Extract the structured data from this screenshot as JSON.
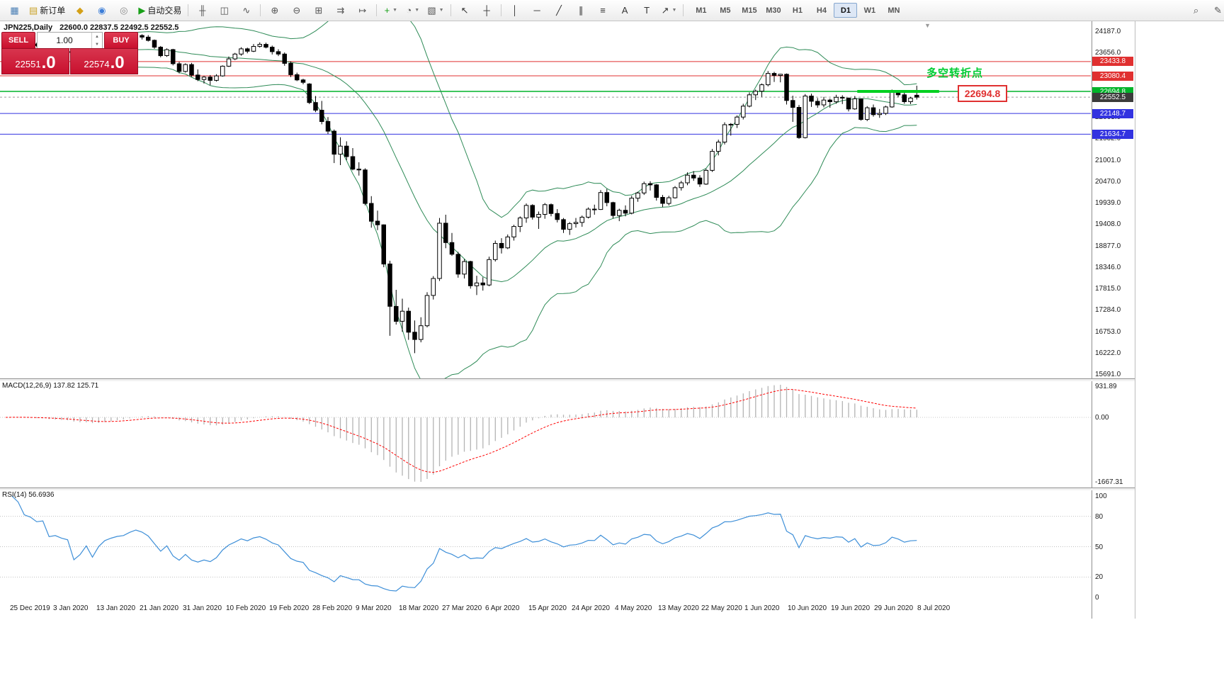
{
  "toolbar": {
    "buttons_left": [
      {
        "name": "chart-window-icon",
        "glyph": "▦",
        "color": "#4a7fb5"
      },
      {
        "name": "new-order-button",
        "glyph": "▤",
        "color": "#c9a227",
        "label": "新订单"
      },
      {
        "name": "indicators-icon",
        "glyph": "◆",
        "color": "#d4a017"
      },
      {
        "name": "market-watch-icon",
        "glyph": "◉",
        "color": "#3b7dd8"
      },
      {
        "name": "navigator-icon",
        "glyph": "◎",
        "color": "#888888"
      },
      {
        "name": "autotrading-button",
        "glyph": "▶",
        "color": "#18a018",
        "label": "自动交易"
      },
      {
        "sep": true
      },
      {
        "name": "bar-chart-icon",
        "glyph": "╫",
        "color": "#555555"
      },
      {
        "name": "candle-chart-icon",
        "glyph": "◫",
        "color": "#555555"
      },
      {
        "name": "line-chart-icon",
        "glyph": "∿",
        "color": "#555555"
      },
      {
        "sep": true
      },
      {
        "name": "zoom-in-button",
        "glyph": "⊕",
        "color": "#555555"
      },
      {
        "name": "zoom-out-button",
        "glyph": "⊖",
        "color": "#555555"
      },
      {
        "name": "tile-windows-icon",
        "glyph": "⊞",
        "color": "#555555"
      },
      {
        "name": "auto-scroll-icon",
        "glyph": "⇉",
        "color": "#555555"
      },
      {
        "name": "chart-shift-icon",
        "glyph": "↦",
        "color": "#555555"
      },
      {
        "sep": true
      },
      {
        "name": "new-chart-button",
        "glyph": "+",
        "color": "#18a018",
        "caret": true
      },
      {
        "name": "period-button",
        "glyph": "◔",
        "color": "#555555",
        "caret": true
      },
      {
        "name": "template-button",
        "glyph": "▧",
        "color": "#555555",
        "caret": true
      },
      {
        "sep": true
      },
      {
        "name": "cursor-icon",
        "glyph": "↖",
        "color": "#333333"
      },
      {
        "name": "crosshair-icon",
        "glyph": "┼",
        "color": "#333333"
      },
      {
        "sep": true
      },
      {
        "name": "vertical-line-icon",
        "glyph": "│",
        "color": "#333333"
      },
      {
        "name": "horizontal-line-icon",
        "glyph": "─",
        "color": "#333333"
      },
      {
        "name": "trendline-icon",
        "glyph": "╱",
        "color": "#333333"
      },
      {
        "name": "channel-icon",
        "glyph": "∥",
        "color": "#333333"
      },
      {
        "name": "fibonacci-icon",
        "glyph": "≡",
        "color": "#333333"
      },
      {
        "name": "text-icon",
        "glyph": "A",
        "color": "#333333"
      },
      {
        "name": "label-icon",
        "glyph": "T",
        "color": "#333333"
      },
      {
        "name": "arrow-tool-icon",
        "glyph": "↗",
        "color": "#333333",
        "caret": true
      },
      {
        "sep": true
      }
    ],
    "timeframes": [
      "M1",
      "M5",
      "M15",
      "M30",
      "H1",
      "H4",
      "D1",
      "W1",
      "MN"
    ],
    "active_timeframe": "D1",
    "buttons_right": [
      {
        "name": "search-icon",
        "glyph": "⌕",
        "color": "#555555"
      },
      {
        "name": "pen-icon",
        "glyph": "✎",
        "color": "#555555"
      }
    ]
  },
  "trade_panel": {
    "sell_label": "SELL",
    "buy_label": "BUY",
    "lot_value": "1.00",
    "sell_price_small": "22551",
    "sell_price_big": ".0",
    "buy_price_small": "22574",
    "buy_price_big": ".0",
    "panel_color": "#c8102e"
  },
  "chart_header": {
    "symbol_period": "JPN225,Daily",
    "ohlc": "22600.0 22837.5 22492.5 22552.5"
  },
  "indicator_labels": {
    "macd": "MACD(12,26,9) 137.82 125.71",
    "rsi": "RSI(14) 56.6936"
  },
  "annotations": {
    "turning_point": "多空转折点",
    "price_flag": "22694.8"
  },
  "axis": {
    "price_ticks": [
      "24187.0",
      "23656.0",
      "23125.0",
      "22594.0",
      "22063.0",
      "21532.0",
      "21001.0",
      "20470.0",
      "19939.0",
      "19408.0",
      "18877.0",
      "18346.0",
      "17815.0",
      "17284.0",
      "16753.0",
      "16222.0",
      "15691.0"
    ],
    "price_badges": [
      {
        "text": "23433.8",
        "color": "#e03030"
      },
      {
        "text": "23080.4",
        "color": "#e03030"
      },
      {
        "text": "22694.8",
        "color": "#00b42a"
      },
      {
        "text": "22552.5",
        "color": "#3c3c3c"
      },
      {
        "text": "22148.7",
        "color": "#3232e0"
      },
      {
        "text": "21634.7",
        "color": "#3232e0"
      }
    ],
    "macd_ticks": [
      "931.89",
      "0.00",
      "-1667.31"
    ],
    "rsi_ticks": [
      "100",
      "80",
      "50",
      "20",
      "0"
    ],
    "dates": [
      "25 Dec 2019",
      "3 Jan 2020",
      "13 Jan 2020",
      "21 Jan 2020",
      "31 Jan 2020",
      "10 Feb 2020",
      "19 Feb 2020",
      "28 Feb 2020",
      "9 Mar 2020",
      "18 Mar 2020",
      "27 Mar 2020",
      "6 Apr 2020",
      "15 Apr 2020",
      "24 Apr 2020",
      "4 May 2020",
      "13 May 2020",
      "22 May 2020",
      "1 Jun 2020",
      "10 Jun 2020",
      "19 Jun 2020",
      "29 Jun 2020",
      "8 Jul 2020"
    ]
  },
  "chart_data": {
    "type": "candlestick",
    "symbol": "JPN225",
    "timeframe": "Daily",
    "title": "JPN225,Daily 22600.0 22837.5 22492.5 22552.5",
    "price_range": [
      15691.0,
      24187.0
    ],
    "macd_range": [
      -1667.31,
      931.89
    ],
    "rsi_range": [
      0,
      100
    ],
    "levels": {
      "red": [
        23433.8,
        23080.4
      ],
      "green": [
        22694.8
      ],
      "blue": [
        22148.7,
        21634.7
      ],
      "current": 22552.5,
      "trend_segment": {
        "price": 22694.8,
        "start_bar": 137.4,
        "end_bar": 150.6,
        "color": "#00d020"
      }
    },
    "indicators": {
      "bollinger": {
        "period": 20,
        "deviation": 2,
        "color": "#2e8b57"
      },
      "macd": {
        "fast": 12,
        "slow": 26,
        "signal": 9,
        "current": [
          137.82,
          125.71
        ]
      },
      "rsi": {
        "period": 14,
        "current": 56.6936
      }
    },
    "candles": [
      [
        23930,
        24010,
        23880,
        23980
      ],
      [
        23980,
        24060,
        23940,
        24030
      ],
      [
        24030,
        24090,
        23950,
        23990
      ],
      [
        23990,
        24010,
        23860,
        23890
      ],
      [
        23890,
        23940,
        23820,
        23870
      ],
      [
        23870,
        23900,
        23790,
        23830
      ],
      [
        23830,
        23880,
        23760,
        23850
      ],
      [
        23850,
        23870,
        23660,
        23690
      ],
      [
        23690,
        23750,
        23640,
        23710
      ],
      [
        23710,
        23760,
        23650,
        23680
      ],
      [
        23680,
        23740,
        23630,
        23660
      ],
      [
        23660,
        23670,
        23280,
        23320
      ],
      [
        23320,
        23420,
        23200,
        23400
      ],
      [
        23400,
        23580,
        23360,
        23560
      ],
      [
        23560,
        23620,
        23220,
        23280
      ],
      [
        23280,
        23560,
        23250,
        23530
      ],
      [
        23530,
        23740,
        23500,
        23710
      ],
      [
        23710,
        23820,
        23680,
        23790
      ],
      [
        23790,
        23880,
        23750,
        23850
      ],
      [
        23850,
        23920,
        23800,
        23880
      ],
      [
        23880,
        24020,
        23860,
        23990
      ],
      [
        23990,
        24120,
        23950,
        24080
      ],
      [
        24080,
        24110,
        23980,
        24040
      ],
      [
        24040,
        24090,
        23930,
        23960
      ],
      [
        23960,
        23980,
        23750,
        23790
      ],
      [
        23790,
        23820,
        23540,
        23580
      ],
      [
        23580,
        23760,
        23550,
        23730
      ],
      [
        23730,
        23750,
        23340,
        23380
      ],
      [
        23380,
        23430,
        23140,
        23190
      ],
      [
        23190,
        23390,
        23160,
        23360
      ],
      [
        23360,
        23400,
        23060,
        23100
      ],
      [
        23100,
        23240,
        22950,
        22990
      ],
      [
        22990,
        23080,
        22890,
        23050
      ],
      [
        23050,
        23100,
        22850,
        22970
      ],
      [
        22970,
        23120,
        22940,
        23080
      ],
      [
        23080,
        23340,
        23060,
        23320
      ],
      [
        23320,
        23560,
        23300,
        23500
      ],
      [
        23500,
        23650,
        23470,
        23620
      ],
      [
        23620,
        23790,
        23580,
        23750
      ],
      [
        23750,
        23780,
        23640,
        23690
      ],
      [
        23690,
        23870,
        23670,
        23810
      ],
      [
        23810,
        23910,
        23780,
        23860
      ],
      [
        23860,
        23900,
        23760,
        23790
      ],
      [
        23790,
        23830,
        23610,
        23680
      ],
      [
        23680,
        23740,
        23570,
        23620
      ],
      [
        23620,
        23660,
        23330,
        23390
      ],
      [
        23390,
        23440,
        23050,
        23110
      ],
      [
        23110,
        23160,
        22950,
        22980
      ],
      [
        22980,
        23010,
        22870,
        22920
      ],
      [
        22880,
        22900,
        22380,
        22420
      ],
      [
        22420,
        22580,
        22180,
        22230
      ],
      [
        22230,
        22460,
        21880,
        21950
      ],
      [
        21950,
        22060,
        21640,
        21710
      ],
      [
        21710,
        21750,
        20920,
        21140
      ],
      [
        21140,
        21560,
        20870,
        21340
      ],
      [
        21340,
        21460,
        20990,
        21080
      ],
      [
        21080,
        21290,
        20740,
        20770
      ],
      [
        20770,
        20940,
        20610,
        20750
      ],
      [
        20750,
        20790,
        19870,
        19920
      ],
      [
        19920,
        20100,
        19320,
        19480
      ],
      [
        19480,
        19740,
        19260,
        19390
      ],
      [
        19390,
        19400,
        18340,
        18420
      ],
      [
        18420,
        18500,
        16640,
        17370
      ],
      [
        17370,
        17780,
        16920,
        17000
      ],
      [
        17000,
        17560,
        16740,
        17250
      ],
      [
        17250,
        17340,
        16540,
        16730
      ],
      [
        16730,
        17020,
        16210,
        16550
      ],
      [
        16550,
        17100,
        16480,
        16890
      ],
      [
        16890,
        17720,
        16850,
        17640
      ],
      [
        17640,
        18120,
        17540,
        18060
      ],
      [
        18060,
        19560,
        18000,
        19430
      ],
      [
        19430,
        19640,
        18810,
        18950
      ],
      [
        18950,
        19190,
        18620,
        18660
      ],
      [
        18660,
        18720,
        18080,
        18170
      ],
      [
        18170,
        18540,
        18060,
        18480
      ],
      [
        18480,
        18500,
        17810,
        17880
      ],
      [
        17880,
        18130,
        17650,
        17950
      ],
      [
        17950,
        18090,
        17760,
        17900
      ],
      [
        17900,
        18600,
        17870,
        18530
      ],
      [
        18530,
        19000,
        18480,
        18930
      ],
      [
        18930,
        19060,
        18680,
        18820
      ],
      [
        18820,
        19150,
        18790,
        19090
      ],
      [
        19090,
        19390,
        19000,
        19350
      ],
      [
        19350,
        19600,
        19210,
        19560
      ],
      [
        19560,
        19920,
        19440,
        19870
      ],
      [
        19870,
        19900,
        19520,
        19580
      ],
      [
        19580,
        19720,
        19290,
        19650
      ],
      [
        19650,
        19930,
        19540,
        19890
      ],
      [
        19890,
        19920,
        19600,
        19670
      ],
      [
        19670,
        19780,
        19450,
        19520
      ],
      [
        19520,
        19560,
        19190,
        19280
      ],
      [
        19280,
        19460,
        19140,
        19420
      ],
      [
        19420,
        19560,
        19320,
        19450
      ],
      [
        19450,
        19620,
        19340,
        19580
      ],
      [
        19580,
        19820,
        19550,
        19780
      ],
      [
        19780,
        19890,
        19640,
        19770
      ],
      [
        19770,
        20250,
        19760,
        20190
      ],
      [
        20190,
        20280,
        19850,
        19940
      ],
      [
        19940,
        19960,
        19550,
        19620
      ],
      [
        19620,
        19790,
        19480,
        19750
      ],
      [
        19750,
        19870,
        19600,
        19680
      ],
      [
        19680,
        20110,
        19650,
        20050
      ],
      [
        20050,
        20210,
        19960,
        20180
      ],
      [
        20180,
        20460,
        20130,
        20410
      ],
      [
        20410,
        20470,
        20240,
        20380
      ],
      [
        20380,
        20400,
        19990,
        20070
      ],
      [
        20070,
        20130,
        19830,
        19920
      ],
      [
        19920,
        20110,
        19870,
        20060
      ],
      [
        20060,
        20350,
        20040,
        20310
      ],
      [
        20310,
        20480,
        20240,
        20430
      ],
      [
        20430,
        20690,
        20370,
        20620
      ],
      [
        20620,
        20720,
        20480,
        20550
      ],
      [
        20550,
        20620,
        20330,
        20400
      ],
      [
        20400,
        20780,
        20380,
        20740
      ],
      [
        20740,
        21270,
        20700,
        21210
      ],
      [
        21210,
        21500,
        21110,
        21440
      ],
      [
        21440,
        21930,
        21380,
        21870
      ],
      [
        21870,
        21910,
        21600,
        21880
      ],
      [
        21880,
        22100,
        21790,
        22060
      ],
      [
        22060,
        22390,
        22000,
        22330
      ],
      [
        22330,
        22670,
        22300,
        22610
      ],
      [
        22610,
        22740,
        22480,
        22700
      ],
      [
        22700,
        22890,
        22560,
        22860
      ],
      [
        22860,
        23200,
        22820,
        23140
      ],
      [
        23140,
        23180,
        22930,
        23090
      ],
      [
        23090,
        23130,
        22920,
        23120
      ],
      [
        23120,
        23140,
        22370,
        22470
      ],
      [
        22470,
        22590,
        21940,
        22300
      ],
      [
        22300,
        22360,
        21520,
        21550
      ],
      [
        21550,
        22630,
        21530,
        22580
      ],
      [
        22580,
        22640,
        22310,
        22450
      ],
      [
        22450,
        22530,
        22290,
        22360
      ],
      [
        22360,
        22560,
        22300,
        22480
      ],
      [
        22480,
        22520,
        22290,
        22440
      ],
      [
        22440,
        22610,
        22390,
        22550
      ],
      [
        22550,
        22600,
        22380,
        22530
      ],
      [
        22530,
        22540,
        22200,
        22260
      ],
      [
        22260,
        22580,
        22240,
        22510
      ],
      [
        22510,
        22520,
        21970,
        22000
      ],
      [
        22000,
        22330,
        21960,
        22290
      ],
      [
        22290,
        22370,
        22070,
        22120
      ],
      [
        22120,
        22260,
        22040,
        22150
      ],
      [
        22150,
        22340,
        22110,
        22310
      ],
      [
        22310,
        22740,
        22290,
        22710
      ],
      [
        22710,
        22730,
        22560,
        22610
      ],
      [
        22610,
        22670,
        22390,
        22440
      ],
      [
        22440,
        22560,
        22380,
        22530
      ],
      [
        22600,
        22837.5,
        22492.5,
        22552.5
      ]
    ]
  }
}
